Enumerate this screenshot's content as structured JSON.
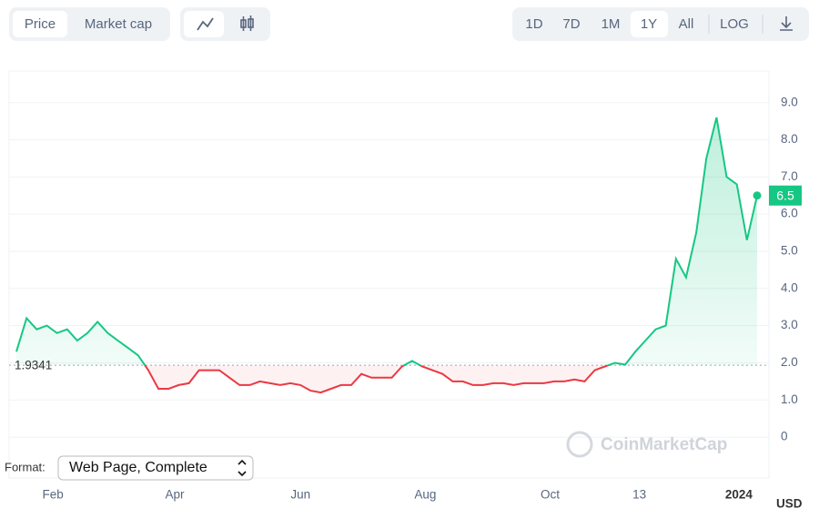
{
  "toolbar": {
    "views": [
      "Price",
      "Market cap"
    ],
    "ranges": [
      "1D",
      "7D",
      "1M",
      "1Y",
      "All",
      "LOG"
    ]
  },
  "chart_data": {
    "type": "line",
    "series": [
      {
        "name": "Price",
        "color": "#16c784",
        "below_color": "#ea3943",
        "values": [
          2.3,
          3.2,
          2.9,
          3.0,
          2.8,
          2.9,
          2.6,
          2.8,
          3.1,
          2.8,
          2.6,
          2.4,
          2.2,
          1.8,
          1.3,
          1.3,
          1.4,
          1.45,
          1.8,
          1.8,
          1.8,
          1.6,
          1.4,
          1.4,
          1.5,
          1.45,
          1.4,
          1.45,
          1.4,
          1.25,
          1.2,
          1.3,
          1.4,
          1.4,
          1.7,
          1.6,
          1.6,
          1.6,
          1.9,
          2.05,
          1.9,
          1.8,
          1.7,
          1.5,
          1.5,
          1.4,
          1.4,
          1.45,
          1.45,
          1.4,
          1.45,
          1.45,
          1.45,
          1.5,
          1.5,
          1.55,
          1.5,
          1.8,
          1.9,
          2.0,
          1.95,
          2.3,
          2.6,
          2.9,
          3.0,
          4.8,
          4.3,
          5.5,
          7.5,
          8.6,
          7.0,
          6.8,
          5.3,
          6.5
        ]
      }
    ],
    "baseline": 1.9341,
    "xlim": [
      0,
      73
    ],
    "xticks": [
      {
        "value": 3.6,
        "label": "Feb"
      },
      {
        "value": 15.6,
        "label": "Apr"
      },
      {
        "value": 28,
        "label": "Jun"
      },
      {
        "value": 40.3,
        "label": "Aug"
      },
      {
        "value": 52.6,
        "label": "Oct"
      },
      {
        "value": 61.4,
        "label": "13"
      },
      {
        "value": 71.2,
        "label": "2024"
      }
    ],
    "ylim": [
      -1.1,
      9.85
    ],
    "yticks": [
      0,
      {
        "value": 1,
        "label": "1.0"
      },
      {
        "value": 2,
        "label": "2.0"
      },
      {
        "value": 3,
        "label": "3.0"
      },
      {
        "value": 4,
        "label": "4.0"
      },
      {
        "value": 5,
        "label": "5.0"
      },
      {
        "value": 6,
        "label": "6.0"
      },
      {
        "value": 7,
        "label": "7.0"
      },
      {
        "value": 8,
        "label": "8.0"
      },
      {
        "value": 9,
        "label": "9.0"
      }
    ],
    "grid": true,
    "unit": "USD",
    "watermark": "CoinMarketCap"
  },
  "format_bar": {
    "label": "Format:",
    "value": "Web Page, Complete"
  }
}
